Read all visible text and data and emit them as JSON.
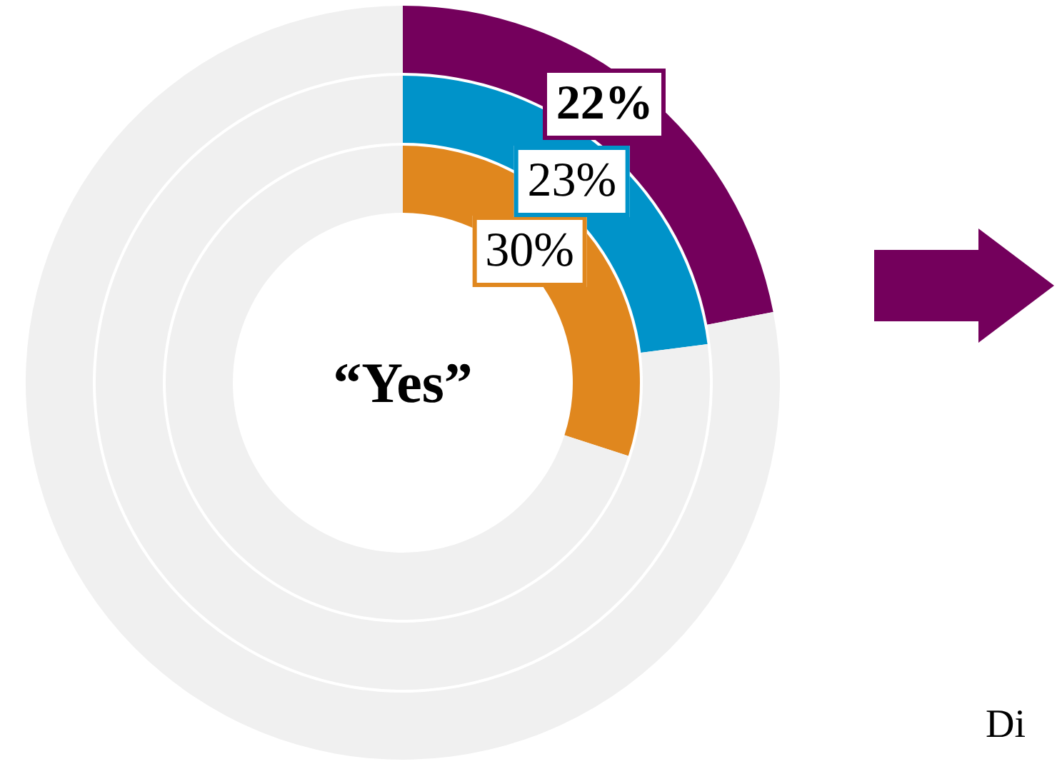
{
  "chart_data": {
    "type": "donut",
    "categories": [
      null,
      null
    ],
    "series": [
      {
        "colors": [
          "#e0871e",
          "#f0f0f0"
        ],
        "values": [
          30,
          70
        ],
        "value_labels": [
          "30%",
          null
        ]
      },
      {
        "colors": [
          "#0093c9",
          "#f0f0f0"
        ],
        "values": [
          23,
          77
        ],
        "value_labels": [
          "23%",
          null
        ]
      },
      {
        "colors": [
          "#74005c",
          "#f0f0f0"
        ],
        "values": [
          22,
          78
        ],
        "value_labels": [
          "22%",
          null
        ]
      }
    ],
    "annotations": [
      "“Yes”",
      "Di"
    ]
  }
}
